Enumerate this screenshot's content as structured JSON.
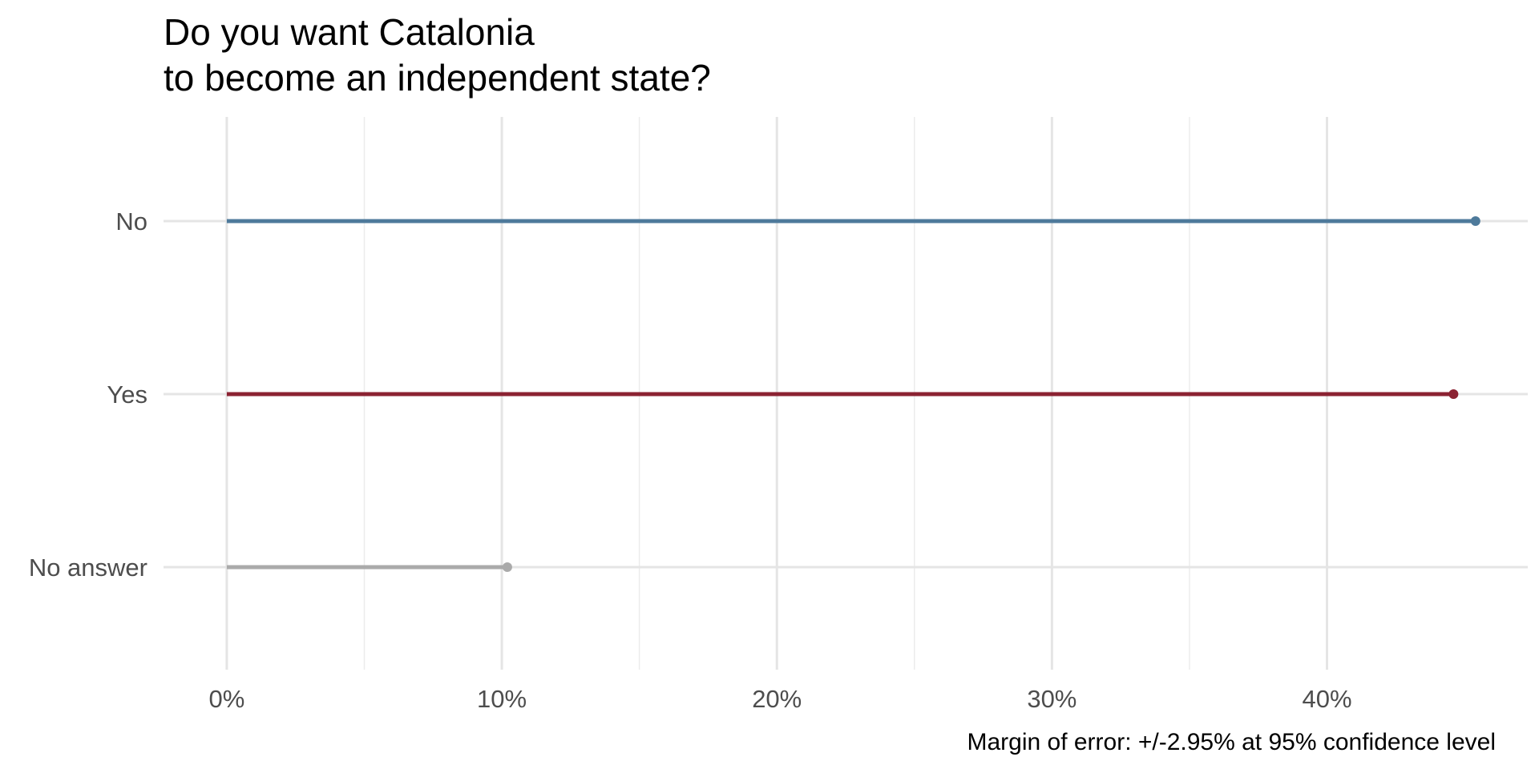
{
  "chart_data": {
    "type": "lollipop",
    "title_lines": [
      "Do you want Catalonia",
      "to become an independent state?"
    ],
    "caption": "Margin of error: +/-2.95% at 95% confidence level",
    "categories": [
      "No",
      "Yes",
      "No answer"
    ],
    "values": [
      45.4,
      44.6,
      10.2
    ],
    "colors": [
      "#4e7a9b",
      "#8b2232",
      "#aaaaaa"
    ],
    "x_ticks": [
      0,
      10,
      20,
      30,
      40
    ],
    "x_tick_labels": [
      "0%",
      "10%",
      "20%",
      "30%",
      "40%"
    ],
    "x_minor_ticks": [
      5,
      15,
      25,
      35
    ],
    "xlim": [
      -2.3,
      47.3
    ],
    "grid": true,
    "legend": "none"
  }
}
